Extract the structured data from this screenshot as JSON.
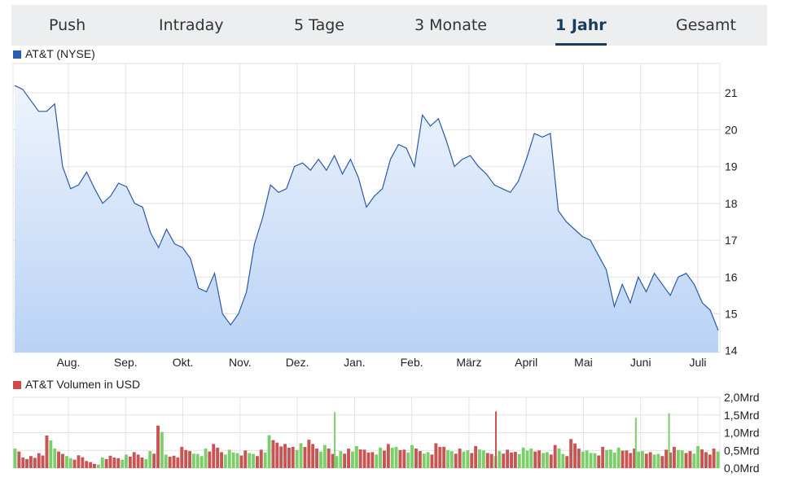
{
  "tabs": [
    {
      "label": "Push",
      "active": false
    },
    {
      "label": "Intraday",
      "active": false
    },
    {
      "label": "5 Tage",
      "active": false
    },
    {
      "label": "3 Monate",
      "active": false
    },
    {
      "label": "1 Jahr",
      "active": true
    },
    {
      "label": "Gesamt",
      "active": false
    }
  ],
  "colors": {
    "price_line": "#2b5aa8",
    "price_fill_top": "#eef4fd",
    "price_fill_bottom": "#b9d2f5",
    "price_legend": "#2c5bb0",
    "volume_legend": "#cf4a4a",
    "volume_up": "#7bcf6a",
    "volume_down": "#c95454",
    "tab_active": "#1b3a5c",
    "grid": "#e2e2e2"
  },
  "chart_data": [
    {
      "type": "area",
      "title": "",
      "legend": "AT&T (NYSE)",
      "xlabel": "",
      "ylabel": "",
      "x_ticks": [
        "Aug.",
        "Sep.",
        "Okt.",
        "Nov.",
        "Dez.",
        "Jan.",
        "Feb.",
        "März",
        "April",
        "Mai",
        "Juni",
        "Juli"
      ],
      "y_ticks": [
        "14",
        "15",
        "16",
        "17",
        "18",
        "19",
        "20",
        "21"
      ],
      "ylim": [
        13.95,
        21.8
      ],
      "grid": true,
      "y_axis_side": "right",
      "series": [
        {
          "values": [
            21.2,
            21.1,
            20.8,
            20.5,
            20.5,
            20.7,
            19.0,
            18.4,
            18.5,
            18.85,
            18.4,
            18.0,
            18.2,
            18.55,
            18.45,
            18.0,
            17.9,
            17.2,
            16.8,
            17.3,
            16.9,
            16.8,
            16.5,
            15.7,
            15.6,
            16.1,
            15.0,
            14.7,
            15.0,
            15.6,
            16.9,
            17.6,
            18.5,
            18.3,
            18.4,
            19.0,
            19.1,
            18.9,
            19.2,
            18.9,
            19.3,
            18.8,
            19.2,
            18.7,
            17.9,
            18.2,
            18.4,
            19.2,
            19.6,
            19.5,
            19.0,
            20.4,
            20.1,
            20.3,
            19.7,
            19.0,
            19.2,
            19.3,
            19.0,
            18.8,
            18.5,
            18.4,
            18.3,
            18.6,
            19.2,
            19.9,
            19.8,
            19.9,
            17.8,
            17.5,
            17.3,
            17.1,
            17.0,
            16.6,
            16.2,
            15.2,
            15.8,
            15.3,
            16.0,
            15.6,
            16.1,
            15.8,
            15.5,
            16.0,
            16.1,
            15.8,
            15.3,
            15.1,
            14.55
          ]
        }
      ]
    },
    {
      "type": "bar",
      "title": "",
      "legend": "AT&T Volumen in USD",
      "xlabel": "",
      "ylabel": "",
      "y_ticks": [
        "0,0Mrd",
        "0,5Mrd",
        "1,0Mrd",
        "1,5Mrd",
        "2,0Mrd"
      ],
      "ylim": [
        0,
        2.0
      ],
      "unit": "Mrd USD",
      "grid": true,
      "y_axis_side": "right",
      "approximate": true,
      "series": [
        {
          "values": [
            0.55,
            0.3,
            0.34,
            0.42,
            0.92,
            0.55,
            0.4,
            0.28,
            0.36,
            0.2,
            0.12,
            0.3,
            0.35,
            0.28,
            0.38,
            0.45,
            0.3,
            0.48,
            1.2,
            0.38,
            0.35,
            0.6,
            0.48,
            0.4,
            0.55,
            0.68,
            0.45,
            0.52,
            0.42,
            0.5,
            0.4,
            0.52,
            0.93,
            0.72,
            0.68,
            0.6,
            0.7,
            0.8,
            0.55,
            0.65,
            0.4,
            0.48,
            0.55,
            0.62,
            0.52,
            0.45,
            0.58,
            0.68,
            0.6,
            0.52,
            0.65,
            0.48,
            0.45,
            0.7,
            0.6,
            0.48,
            0.55,
            0.5,
            0.62,
            0.5,
            0.4,
            0.48,
            0.52,
            0.46,
            0.58,
            0.55,
            0.5,
            0.45,
            0.65,
            0.4,
            0.82,
            0.55,
            0.5,
            0.42,
            0.6,
            0.52,
            0.58,
            0.5,
            0.55,
            0.48,
            0.45,
            0.4,
            0.52,
            0.6,
            0.5,
            0.48,
            0.62,
            0.45,
            0.55
          ],
          "direction": [
            "u",
            "d",
            "d",
            "d",
            "d",
            "u",
            "d",
            "u",
            "d",
            "d",
            "d",
            "u",
            "d",
            "d",
            "u",
            "d",
            "d",
            "u",
            "d",
            "u",
            "d",
            "d",
            "d",
            "u",
            "u",
            "d",
            "d",
            "u",
            "u",
            "d",
            "u",
            "d",
            "u",
            "d",
            "d",
            "d",
            "u",
            "d",
            "d",
            "u",
            "d",
            "u",
            "d",
            "u",
            "d",
            "d",
            "u",
            "d",
            "u",
            "d",
            "u",
            "d",
            "u",
            "d",
            "d",
            "u",
            "d",
            "u",
            "d",
            "u",
            "d",
            "u",
            "d",
            "d",
            "u",
            "u",
            "d",
            "u",
            "d",
            "u",
            "d",
            "d",
            "u",
            "u",
            "d",
            "u",
            "u",
            "d",
            "d",
            "u",
            "d",
            "u",
            "d",
            "d",
            "u",
            "d",
            "u",
            "d",
            "d"
          ]
        }
      ],
      "highlights": [
        {
          "x_pos": 0.454,
          "value": 1.58,
          "direction": "u"
        },
        {
          "x_pos": 0.682,
          "value": 1.6,
          "direction": "d"
        },
        {
          "x_pos": 0.88,
          "value": 1.42,
          "direction": "u"
        },
        {
          "x_pos": 0.927,
          "value": 1.55,
          "direction": "u"
        }
      ]
    }
  ]
}
